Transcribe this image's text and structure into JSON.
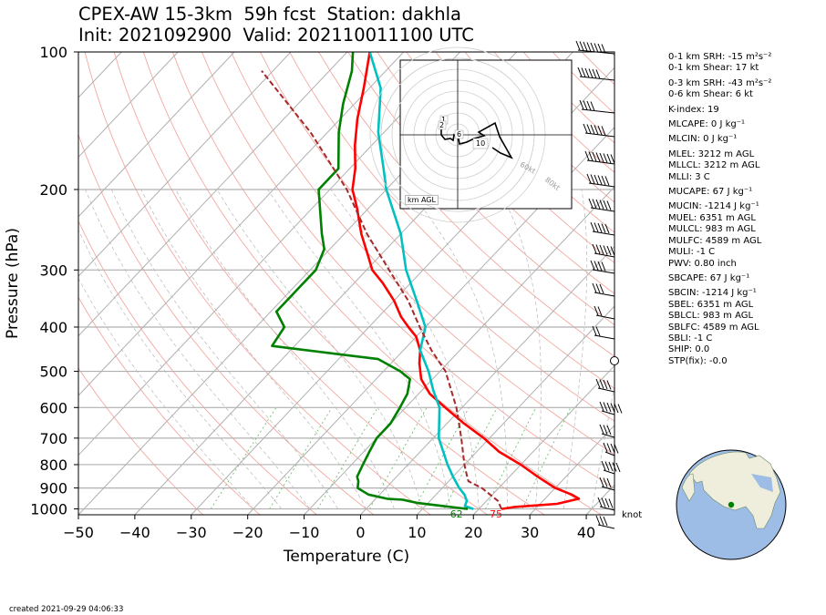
{
  "header": {
    "title_line1": "CPEX-AW 15-3km  59h fcst  Station: dakhla",
    "title_line2": "Init: 2021092900  Valid: 202110011100 UTC"
  },
  "footer": {
    "created": "created 2021-09-29 04:06:33"
  },
  "wind_unit_label": "knot",
  "hodograph": {
    "label": "km AGL",
    "ring_labels": [
      "60kt",
      "80kt"
    ],
    "height_labels": [
      "1",
      "2",
      "6",
      "10"
    ]
  },
  "params": [
    {
      "text": "0-1 km SRH: -15 m²s⁻²"
    },
    {
      "text": "0-1 km Shear: 17 kt"
    },
    {
      "text": "0-3 km SRH: -43 m²s⁻²"
    },
    {
      "text": "0-6 km Shear: 6 kt"
    },
    {
      "text": "K-index: 19"
    },
    {
      "text": "MLCAPE: 0 J kg⁻¹"
    },
    {
      "text": "MLCIN: 0 J kg⁻¹"
    },
    {
      "text": "MLEL: 3212 m AGL"
    },
    {
      "text": "MLLCL: 3212 m AGL"
    },
    {
      "text": "MLLI: 3 C"
    },
    {
      "text": "MUCAPE: 67 J kg⁻¹"
    },
    {
      "text": "MUCIN: -1214 J kg⁻¹"
    },
    {
      "text": "MUEL: 6351 m AGL"
    },
    {
      "text": "MULCL: 983 m AGL"
    },
    {
      "text": "MULFC: 4589 m AGL"
    },
    {
      "text": "MULI: -1 C"
    },
    {
      "text": "PWV: 0.80 inch"
    },
    {
      "text": "SBCAPE: 67 J kg⁻¹"
    },
    {
      "text": "SBCIN: -1214 J kg⁻¹"
    },
    {
      "text": "SBEL: 6351 m AGL"
    },
    {
      "text": "SBLCL: 983 m AGL"
    },
    {
      "text": "SBLFC: 4589 m AGL"
    },
    {
      "text": "SBLI: -1 C"
    },
    {
      "text": "SHIP: 0.0"
    },
    {
      "text": "STP(fix): -0.0"
    }
  ],
  "chart_data": {
    "type": "line",
    "subtype": "skew-T log-P diagram",
    "xlabel": "Temperature (C)",
    "ylabel": "Pressure (hPa)",
    "xlim": [
      -50,
      45
    ],
    "ylim": [
      1030,
      100
    ],
    "y_scale": "log",
    "x_ticks": [
      -50,
      -40,
      -30,
      -20,
      -10,
      0,
      10,
      20,
      30,
      40
    ],
    "y_ticks": [
      1000,
      900,
      800,
      700,
      600,
      500,
      400,
      300,
      200,
      100
    ],
    "grid": true,
    "surface_labels": [
      {
        "text": "62",
        "color": "#008000",
        "value_c": 17
      },
      {
        "text": "75",
        "color": "#ff0000",
        "value_c": 24
      }
    ],
    "series": [
      {
        "color": "#ff0000",
        "style": "solid",
        "points": [
          [
            1000,
            24
          ],
          [
            990,
            26
          ],
          [
            975,
            33
          ],
          [
            950,
            36
          ],
          [
            930,
            34
          ],
          [
            900,
            30
          ],
          [
            850,
            25
          ],
          [
            800,
            20
          ],
          [
            750,
            14
          ],
          [
            700,
            9
          ],
          [
            650,
            3
          ],
          [
            600,
            -3
          ],
          [
            560,
            -8
          ],
          [
            520,
            -12
          ],
          [
            480,
            -15
          ],
          [
            450,
            -17
          ],
          [
            420,
            -20
          ],
          [
            400,
            -23
          ],
          [
            380,
            -26
          ],
          [
            350,
            -30
          ],
          [
            320,
            -35
          ],
          [
            300,
            -39
          ],
          [
            280,
            -42
          ],
          [
            250,
            -47
          ],
          [
            220,
            -52
          ],
          [
            200,
            -56
          ],
          [
            180,
            -59
          ],
          [
            160,
            -63
          ],
          [
            140,
            -67
          ],
          [
            120,
            -71
          ],
          [
            100,
            -76
          ]
        ]
      },
      {
        "color": "#00c0c0",
        "style": "solid",
        "points": [
          [
            1000,
            19
          ],
          [
            985,
            17
          ],
          [
            960,
            16.5
          ],
          [
            930,
            15
          ],
          [
            900,
            13
          ],
          [
            850,
            10
          ],
          [
            800,
            7
          ],
          [
            700,
            1
          ],
          [
            600,
            -4
          ],
          [
            550,
            -8
          ],
          [
            500,
            -12
          ],
          [
            450,
            -17
          ],
          [
            400,
            -20
          ],
          [
            350,
            -26
          ],
          [
            300,
            -33
          ],
          [
            250,
            -40
          ],
          [
            200,
            -50
          ],
          [
            180,
            -54
          ],
          [
            150,
            -61
          ],
          [
            120,
            -68
          ],
          [
            100,
            -76
          ]
        ]
      },
      {
        "color": "#008000",
        "style": "solid",
        "points": [
          [
            1000,
            18
          ],
          [
            985,
            13
          ],
          [
            970,
            8
          ],
          [
            960,
            6
          ],
          [
            955,
            5
          ],
          [
            950,
            2
          ],
          [
            930,
            -2
          ],
          [
            900,
            -5
          ],
          [
            870,
            -6
          ],
          [
            850,
            -7
          ],
          [
            800,
            -8
          ],
          [
            750,
            -9
          ],
          [
            700,
            -10
          ],
          [
            650,
            -10
          ],
          [
            600,
            -11
          ],
          [
            560,
            -12
          ],
          [
            520,
            -14
          ],
          [
            500,
            -17
          ],
          [
            470,
            -23
          ],
          [
            440,
            -44
          ],
          [
            400,
            -45
          ],
          [
            370,
            -49
          ],
          [
            330,
            -49
          ],
          [
            300,
            -49
          ],
          [
            270,
            -51
          ],
          [
            250,
            -54
          ],
          [
            200,
            -62
          ],
          [
            180,
            -62
          ],
          [
            150,
            -68
          ],
          [
            130,
            -72
          ],
          [
            110,
            -76
          ],
          [
            100,
            -79
          ]
        ]
      },
      {
        "color": "#a52a2a",
        "style": "dashed",
        "points": [
          [
            1000,
            24
          ],
          [
            960,
            22
          ],
          [
            900,
            17
          ],
          [
            870,
            13.5
          ],
          [
            850,
            12.5
          ],
          [
            800,
            10
          ],
          [
            700,
            5
          ],
          [
            600,
            -1
          ],
          [
            500,
            -9
          ],
          [
            450,
            -15
          ],
          [
            400,
            -21
          ],
          [
            350,
            -27.5
          ],
          [
            300,
            -36
          ],
          [
            250,
            -46
          ],
          [
            200,
            -57
          ],
          [
            150,
            -73
          ],
          [
            110,
            -92
          ]
        ]
      }
    ]
  }
}
